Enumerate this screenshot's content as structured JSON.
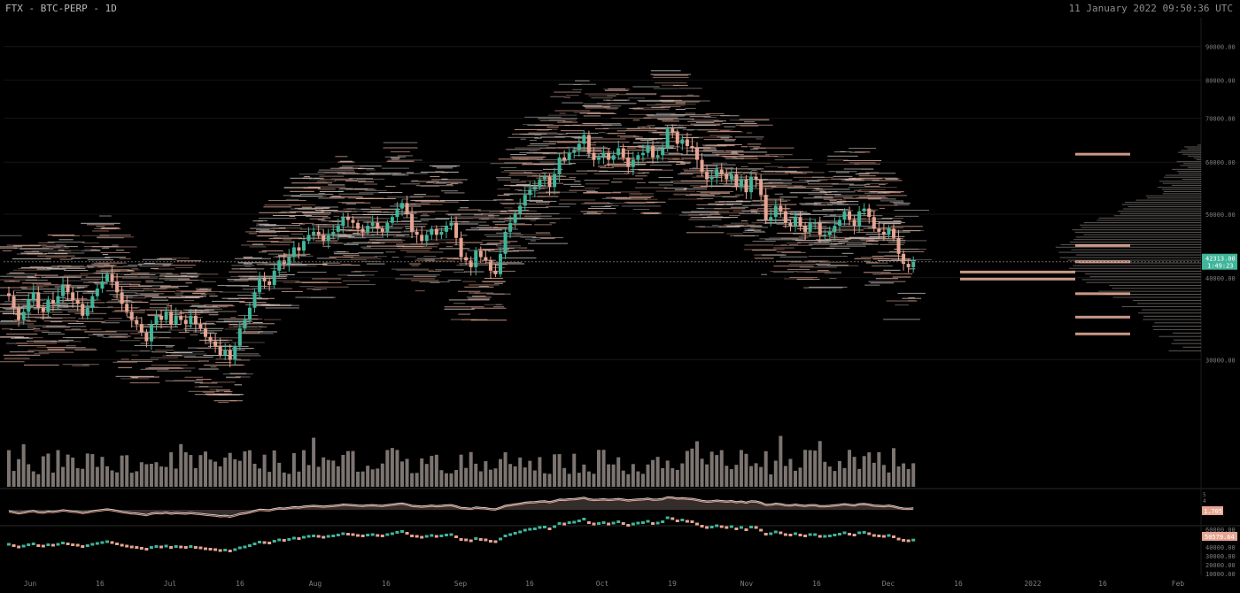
{
  "header": {
    "title": "FTX - BTC-PERP - 1D",
    "timestamp": "11 January 2022 09:50:36 UTC"
  },
  "colors": {
    "background": "#000000",
    "up": "#3fb59a",
    "down": "#e6a592",
    "book": "#f0b29c",
    "volume_bar": "#7b7470",
    "grid": "#151515",
    "axis_text": "#7f7f7f",
    "last_price_bg": "#3fb59a"
  },
  "chart_data": [
    {
      "type": "candlestick",
      "title": "FTX - BTC-PERP - 1D",
      "x_labels": [
        "Jun",
        "16",
        "Jul",
        "16",
        "Aug",
        "16",
        "Sep",
        "16",
        "Oct",
        "19",
        "Nov",
        "16",
        "Dec",
        "16",
        "2022",
        "16",
        "Feb"
      ],
      "y_ticks": [
        30000,
        40000,
        50000,
        60000,
        70000,
        80000,
        90000
      ],
      "y_tick_labels": [
        "30000.00",
        "40000.00",
        "50000.00",
        "60000.00",
        "70000.00",
        "80000.00",
        "90000.00"
      ],
      "ylim": [
        23000,
        99000
      ],
      "last_price_label": "42313.00",
      "last_price_sub": "1:49:23",
      "last_price": 42313,
      "scale": "log",
      "grid": false,
      "close": [
        37500,
        36000,
        34500,
        35500,
        37000,
        38000,
        36000,
        35500,
        37000,
        36500,
        37500,
        39000,
        38000,
        37000,
        36500,
        35000,
        36000,
        37500,
        38500,
        39500,
        40500,
        39500,
        38000,
        36500,
        35500,
        34500,
        34000,
        33000,
        32000,
        34000,
        35000,
        34500,
        35500,
        34000,
        35000,
        34500,
        34000,
        35000,
        34000,
        33500,
        32500,
        32000,
        31500,
        30500,
        31000,
        30000,
        31500,
        33500,
        34500,
        36000,
        38000,
        40000,
        39500,
        39000,
        41000,
        42500,
        42000,
        43000,
        44500,
        44000,
        45500,
        46500,
        47000,
        46500,
        45500,
        46500,
        47000,
        48000,
        49500,
        49000,
        48500,
        47500,
        47000,
        48000,
        48500,
        47500,
        47000,
        48500,
        49500,
        51000,
        52000,
        50000,
        47000,
        46500,
        45500,
        46500,
        47500,
        46500,
        47000,
        48000,
        48500,
        46000,
        43000,
        42500,
        41500,
        44000,
        43000,
        42500,
        41000,
        40500,
        43500,
        47000,
        48500,
        50000,
        51500,
        53500,
        54500,
        55000,
        56500,
        57000,
        55000,
        57500,
        61000,
        60500,
        62000,
        62500,
        64000,
        66000,
        62000,
        60500,
        61000,
        62000,
        60500,
        61500,
        63000,
        61000,
        59000,
        60500,
        61500,
        62000,
        63500,
        61000,
        61500,
        63000,
        67500,
        66500,
        64000,
        65000,
        63500,
        63000,
        60500,
        58000,
        56500,
        57000,
        58500,
        57500,
        56500,
        57500,
        55000,
        56500,
        54000,
        57000,
        56500,
        53500,
        49000,
        49500,
        51500,
        50500,
        48500,
        48000,
        49500,
        48000,
        47000,
        48500,
        48500,
        46500,
        46500,
        47000,
        48000,
        49000,
        50500,
        49000,
        48000,
        50500,
        51000,
        49500,
        47500,
        47000,
        46500,
        47500,
        46000,
        43500,
        42000,
        41500,
        42313
      ],
      "volume_trend": "high in mid-2021, moderate late-2021",
      "indicators": [
        {
          "type": "oscillator",
          "labels": [
            "5",
            "4"
          ],
          "value_label": "1.705"
        },
        {
          "type": "line",
          "value_label": "50579.64",
          "y_ticks": [
            10000,
            20000,
            30000,
            40000,
            50000,
            60000
          ],
          "y_tick_labels": [
            "10000.00",
            "20000.00",
            "30000.00",
            "40000.00",
            "50000.00",
            "60000.00"
          ]
        }
      ]
    }
  ]
}
